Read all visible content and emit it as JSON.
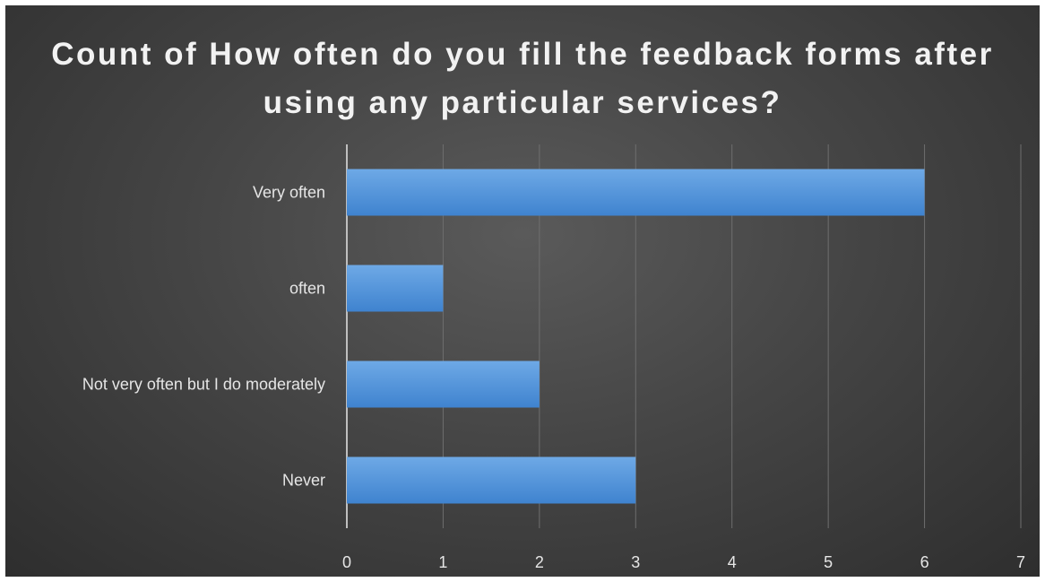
{
  "chart_data": {
    "type": "bar",
    "orientation": "horizontal",
    "title": "Count of How often do you fill the feedback forms after using any particular services?",
    "categories": [
      "Very often",
      "often",
      "Not very often but I do moderately",
      "Never"
    ],
    "values": [
      6,
      1,
      2,
      3
    ],
    "xlim": [
      0,
      7
    ],
    "xticks": [
      "0",
      "1",
      "2",
      "3",
      "4",
      "5",
      "6",
      "7"
    ],
    "grid": true,
    "legend": "none",
    "bar_color": "#4a8fd8"
  }
}
